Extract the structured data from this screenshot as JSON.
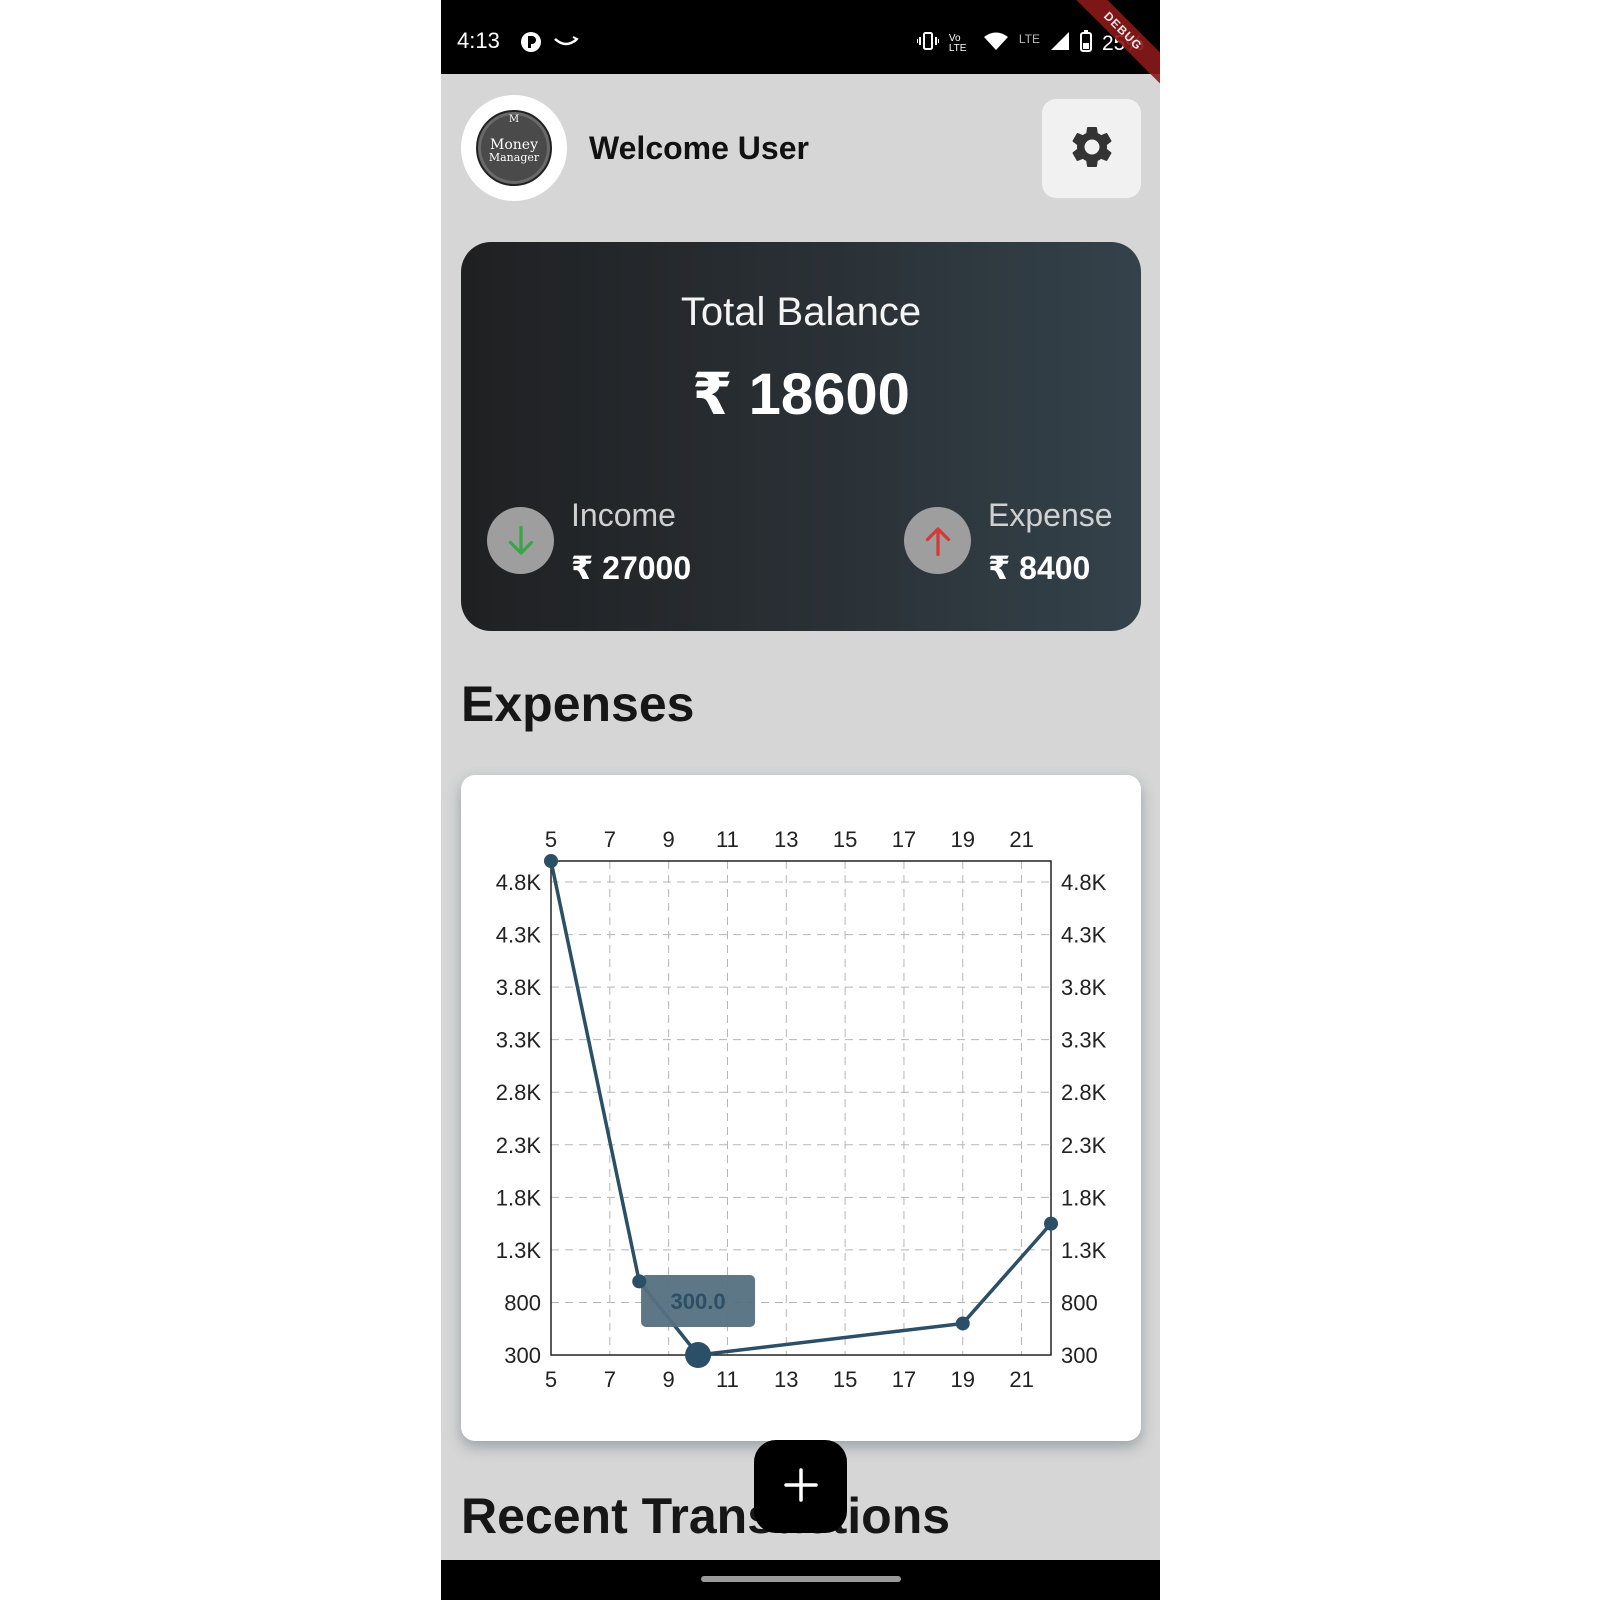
{
  "status_bar": {
    "time": "4:13",
    "network": "LTE",
    "volte": "Vo LTE",
    "battery": "25%",
    "debug_banner": "DEBUG"
  },
  "header": {
    "logo_top": "M",
    "logo_line1": "Money",
    "logo_line2": "Manager",
    "welcome": "Welcome User"
  },
  "balance": {
    "title": "Total Balance",
    "amount": "₹ 18600",
    "income_label": "Income",
    "income_value": "₹ 27000",
    "expense_label": "Expense",
    "expense_value": "₹ 8400"
  },
  "sections": {
    "expenses_title": "Expenses",
    "recent_title": "Recent Transactions"
  },
  "colors": {
    "line": "#2b4f66",
    "income_arrow": "#3aa64a",
    "expense_arrow": "#d23a3a",
    "tooltip_bg": "#557080",
    "tooltip_text": "#2b4f66"
  },
  "chart_data": {
    "type": "line",
    "x_ticks": [
      "5",
      "7",
      "9",
      "11",
      "13",
      "15",
      "17",
      "19",
      "21"
    ],
    "y_ticks": [
      "300",
      "800",
      "1.3K",
      "1.8K",
      "2.3K",
      "2.8K",
      "3.3K",
      "3.8K",
      "4.3K",
      "4.8K"
    ],
    "xlim": [
      5,
      22
    ],
    "ylim": [
      300,
      5000
    ],
    "grid": true,
    "points": [
      {
        "x": 5,
        "y": 5000
      },
      {
        "x": 8,
        "y": 1000
      },
      {
        "x": 10,
        "y": 300
      },
      {
        "x": 19,
        "y": 600
      },
      {
        "x": 22,
        "y": 1550
      }
    ],
    "highlight_index": 2,
    "tooltip": "300.0"
  }
}
